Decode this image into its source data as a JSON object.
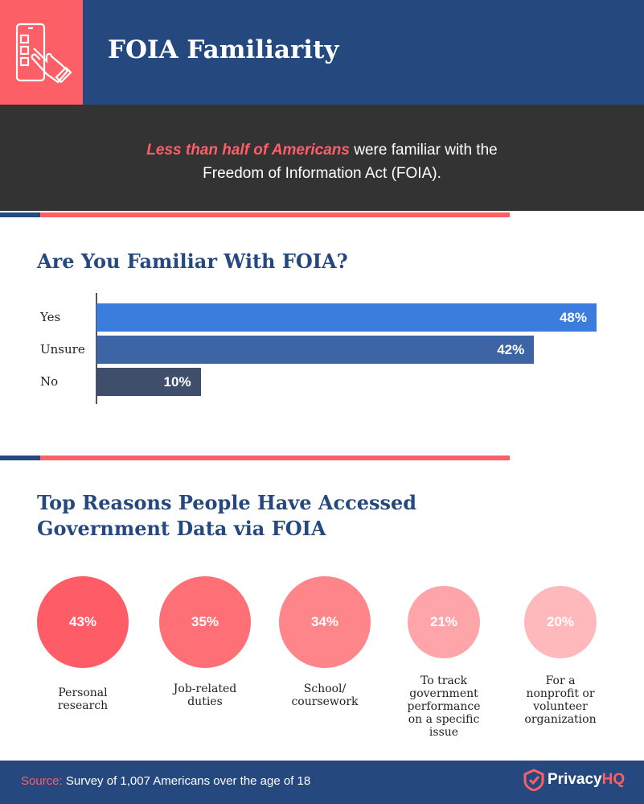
{
  "header": {
    "title": "FOIA Familiarity",
    "icon": "phone-touch-icon"
  },
  "intro": {
    "highlight": "Less than half of Americans",
    "line1_rest": " were familiar with the",
    "line2": "Freedom of Information Act (FOIA)."
  },
  "colors": {
    "navy": "#25497f",
    "coral": "#fd5f67",
    "dark": "#333333"
  },
  "chart_data": [
    {
      "type": "bar",
      "orientation": "horizontal",
      "title": "Are You Familiar With FOIA?",
      "categories": [
        "Yes",
        "Unsure",
        "No"
      ],
      "values": [
        48,
        42,
        10
      ],
      "labels": [
        "48%",
        "42%",
        "10%"
      ],
      "colors": [
        "#3b7ddd",
        "#3d65a6",
        "#3e4e6b"
      ],
      "xlim": [
        0,
        48
      ]
    },
    {
      "type": "bubble",
      "title": "Top Reasons People Have Accessed Government Data via FOIA",
      "title_lines": [
        "Top Reasons People Have Accessed",
        "Government Data via FOIA"
      ],
      "categories": [
        "Personal research",
        "Job-related duties",
        "School/ coursework",
        "To track government performance on a specific issue",
        "For a nonprofit or volunteer organization"
      ],
      "category_lines": [
        [
          "Personal",
          "research"
        ],
        [
          "Job-related",
          "duties"
        ],
        [
          "School/",
          "coursework"
        ],
        [
          "To track",
          "government",
          "performance",
          "on a specific",
          "issue"
        ],
        [
          "For a",
          "nonprofit or",
          "volunteer",
          "organization"
        ]
      ],
      "values": [
        43,
        35,
        34,
        21,
        20
      ],
      "labels": [
        "43%",
        "35%",
        "34%",
        "21%",
        "20%"
      ],
      "colors": [
        "#fe5c66",
        "#fe7076",
        "#fe8589",
        "#fea5aa",
        "#ffb8bc"
      ]
    }
  ],
  "footer": {
    "source_label": "Source:",
    "source_text": " Survey of 1,007 Americans over the age of 18",
    "logo_a": "Privacy",
    "logo_b": "HQ"
  }
}
